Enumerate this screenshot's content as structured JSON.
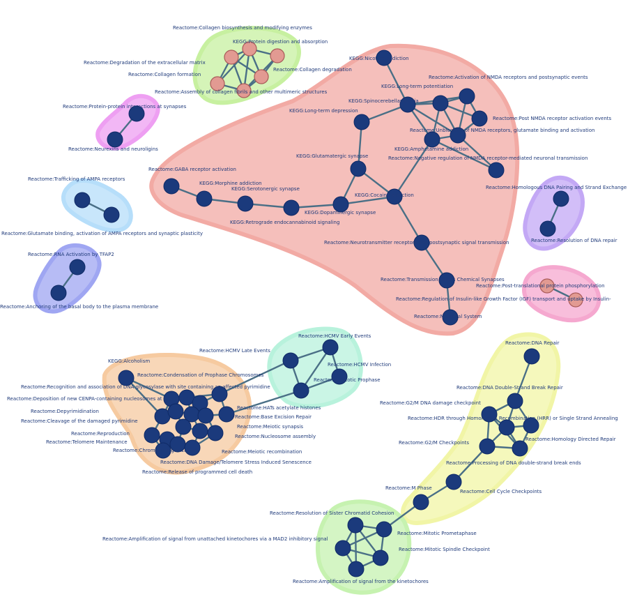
{
  "colors": {
    "node": "#1b3a7c",
    "node_light": "#e29a92",
    "edge": "#4a6f86",
    "label": "#1f3a7a"
  },
  "clusters": [
    {
      "id": "synaptic",
      "color": "#f2aaa4"
    },
    {
      "id": "collagen",
      "color": "#c7f0a0"
    },
    {
      "id": "neuroligin",
      "color": "#ee9ff2"
    },
    {
      "id": "ampa",
      "color": "#b6defa"
    },
    {
      "id": "tfap2",
      "color": "#9fa6f2"
    },
    {
      "id": "dna-repair-homology",
      "color": "#c3a8f5"
    },
    {
      "id": "igf",
      "color": "#f5a8cf"
    },
    {
      "id": "hcmv",
      "color": "#b8f2dc"
    },
    {
      "id": "prophase",
      "color": "#f6caa0"
    },
    {
      "id": "checkpoints",
      "color": "#f1f5a6"
    },
    {
      "id": "kinetochore",
      "color": "#c6f2b0"
    }
  ],
  "labels": [
    {
      "id": "L1",
      "text": "Reactome:Collagen biosynthesis and modifying enzymes"
    },
    {
      "id": "L2",
      "text": "KEGG:Protein digestion and absorption"
    },
    {
      "id": "L3",
      "text": "Reactome:Degradation of the extracellular matrix"
    },
    {
      "id": "L4",
      "text": "Reactome:Collagen formation"
    },
    {
      "id": "L5",
      "text": "Reactome:Collagen degradation"
    },
    {
      "id": "L6",
      "text": "Reactome:Assembly of collagen fibrils and other multimeric structures"
    },
    {
      "id": "L7",
      "text": "KEGG:Nicotine addiction"
    },
    {
      "id": "L8",
      "text": "Reactome:Activation of NMDA receptors and postsynaptic events"
    },
    {
      "id": "L9",
      "text": "KEGG:Long-term potentiation"
    },
    {
      "id": "L10",
      "text": "Reactome:Protein-protein interactions at synapses"
    },
    {
      "id": "L11",
      "text": "KEGG:Spinocerebellar ataxia"
    },
    {
      "id": "L12",
      "text": "KEGG:Long-term depression"
    },
    {
      "id": "L13",
      "text": "Reactome:Post NMDA receptor activation events"
    },
    {
      "id": "L14",
      "text": "Reactome:Unblocking of NMDA receptors, glutamate binding and activation"
    },
    {
      "id": "L15",
      "text": "Reactome:Neurexins and neuroligins"
    },
    {
      "id": "L16",
      "text": "KEGG:Amphetamine addiction"
    },
    {
      "id": "L17",
      "text": "KEGG:Glutamatergic synapse"
    },
    {
      "id": "L18",
      "text": "Reactome:Negative regulation of NMDA receptor-mediated neuronal transmission"
    },
    {
      "id": "L19",
      "text": "Reactome:GABA receptor activation"
    },
    {
      "id": "L20",
      "text": "Reactome:Trafficking of AMPA receptors"
    },
    {
      "id": "L21",
      "text": "KEGG:Morphine addiction"
    },
    {
      "id": "L22",
      "text": "KEGG:Serotonergic synapse"
    },
    {
      "id": "L23",
      "text": "KEGG:Cocaine addiction"
    },
    {
      "id": "L24",
      "text": "Reactome:Homologous DNA Pairing and Strand Exchange"
    },
    {
      "id": "L25",
      "text": "KEGG:Dopaminergic synapse"
    },
    {
      "id": "L26",
      "text": "KEGG:Retrograde endocannabinoid signaling"
    },
    {
      "id": "L27",
      "text": "Reactome:Glutamate binding, activation of AMPA receptors and synaptic plasticity"
    },
    {
      "id": "L28",
      "text": "Reactome:Neurotransmitter receptors and postsynaptic signal transmission"
    },
    {
      "id": "L29",
      "text": "Reactome:Resolution of DNA repair"
    },
    {
      "id": "L30",
      "text": "Reactome:RNA Activation by TFAP2"
    },
    {
      "id": "L31",
      "text": "Reactome:Transmission across Chemical Synapses"
    },
    {
      "id": "L32",
      "text": "Reactome:Post-translational protein phosphorylation"
    },
    {
      "id": "L33",
      "text": "Reactome:Anchoring of the basal body to the plasma membrane"
    },
    {
      "id": "L34",
      "text": "Reactome:Regulation of Insulin-like Growth Factor (IGF) transport and uptake by Insulin-"
    },
    {
      "id": "L35",
      "text": "Reactome:Neuronal System"
    },
    {
      "id": "L36",
      "text": "Reactome:HCMV Early Events"
    },
    {
      "id": "L37",
      "text": "Reactome:DNA Repair"
    },
    {
      "id": "L38",
      "text": "Reactome:HCMV Late Events"
    },
    {
      "id": "L39",
      "text": "Reactome:HCMV Infection"
    },
    {
      "id": "L40",
      "text": "KEGG:Alcoholism"
    },
    {
      "id": "L41",
      "text": "Reactome:Condensation of Prophase Chromosomes"
    },
    {
      "id": "L42",
      "text": "Reactome:Recognition and association of DNA glycosylase with site containing an affected pyrimidine"
    },
    {
      "id": "L43",
      "text": "Reactome:Mitotic Prophase"
    },
    {
      "id": "L44",
      "text": "Reactome:DNA Double-Strand Break Repair"
    },
    {
      "id": "L45",
      "text": "Reactome:Deposition of new CENPA-containing nucleosomes at the centromere"
    },
    {
      "id": "L46",
      "text": "Reactome:HATs acetylate histones"
    },
    {
      "id": "L47",
      "text": "Reactome:G2/M DNA damage checkpoint"
    },
    {
      "id": "L48",
      "text": "Reactome:Depyrimidination"
    },
    {
      "id": "L49",
      "text": "Reactome:Base Excision Repair"
    },
    {
      "id": "L50",
      "text": "Reactome:HDR through Homologous Recombination (HRR) or Single Strand Annealing"
    },
    {
      "id": "L51",
      "text": "Reactome:Cleavage of the damaged pyrimidine"
    },
    {
      "id": "L52",
      "text": "Reactome:Meiotic synapsis"
    },
    {
      "id": "L53",
      "text": "Reactome:Reproduction"
    },
    {
      "id": "L54",
      "text": "Reactome:Nucleosome assembly"
    },
    {
      "id": "L55",
      "text": "Reactome:Homology Directed Repair"
    },
    {
      "id": "L56",
      "text": "Reactome:Telomere Maintenance"
    },
    {
      "id": "L57",
      "text": "Reactome:G2/M Checkpoints"
    },
    {
      "id": "L58",
      "text": "Reactome:Chromatin organization"
    },
    {
      "id": "L59",
      "text": "Reactome:Meiotic recombination"
    },
    {
      "id": "L60",
      "text": "Reactome:Processing of DNA double-strand break ends"
    },
    {
      "id": "L61",
      "text": "Reactome:DNA Damage/Telomere Stress Induced Senescence"
    },
    {
      "id": "L62",
      "text": "Reactome:Release of programmed cell death"
    },
    {
      "id": "L63",
      "text": "Reactome:M Phase"
    },
    {
      "id": "L64",
      "text": "Reactome:Cell Cycle Checkpoints"
    },
    {
      "id": "L65",
      "text": "Reactome:Resolution of Sister Chromatid Cohesion"
    },
    {
      "id": "L66",
      "text": "Reactome:Mitotic Prometaphase"
    },
    {
      "id": "L67",
      "text": "Reactome:Amplification of signal from unattached kinetochores via a MAD2 inhibitory signal"
    },
    {
      "id": "L68",
      "text": "Reactome:Mitotic Spindle Checkpoint"
    },
    {
      "id": "L69",
      "text": "Reactome:Amplification of signal from the kinetochores"
    }
  ]
}
